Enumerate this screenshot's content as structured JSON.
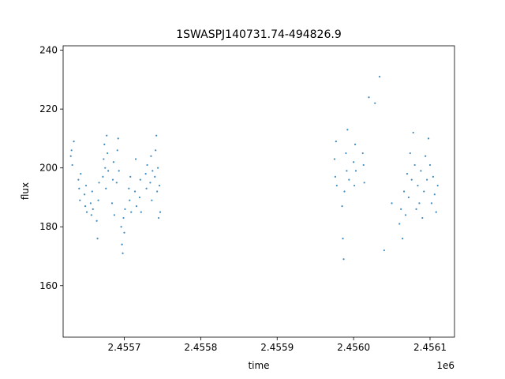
{
  "chart_data": {
    "type": "scatter",
    "title": "1SWASPJ140731.74-494826.9",
    "xlabel": "time",
    "ylabel": "flux",
    "x_offset_label": "1e6",
    "xlim": [
      2455620,
      2456132
    ],
    "ylim": [
      142.5,
      241.5
    ],
    "x_ticks": [
      2.4557,
      2.4558,
      2.4559,
      2.456,
      2.4561
    ],
    "x_tick_labels": [
      "2.4557",
      "2.4558",
      "2.4559",
      "2.4560",
      "2.4561"
    ],
    "y_ticks": [
      160,
      180,
      200,
      220,
      240
    ],
    "y_tick_labels": [
      "160",
      "180",
      "200",
      "220",
      "240"
    ],
    "grid": false,
    "marker_color": "#1f77b4",
    "series": [
      {
        "values_xy": [
          [
            2455630,
            204
          ],
          [
            2455631,
            206
          ],
          [
            2455632,
            201
          ],
          [
            2455634,
            209
          ],
          [
            2455640,
            196
          ],
          [
            2455641,
            193
          ],
          [
            2455642,
            189
          ],
          [
            2455643,
            198
          ],
          [
            2455648,
            191
          ],
          [
            2455649,
            187
          ],
          [
            2455650,
            194
          ],
          [
            2455651,
            185
          ],
          [
            2455656,
            188
          ],
          [
            2455657,
            184
          ],
          [
            2455658,
            192
          ],
          [
            2455659,
            186
          ],
          [
            2455664,
            182
          ],
          [
            2455665,
            176
          ],
          [
            2455666,
            189
          ],
          [
            2455667,
            195
          ],
          [
            2455672,
            197
          ],
          [
            2455673,
            203
          ],
          [
            2455674,
            208
          ],
          [
            2455675,
            200
          ],
          [
            2455676,
            193
          ],
          [
            2455677,
            211
          ],
          [
            2455678,
            205
          ],
          [
            2455679,
            199
          ],
          [
            2455684,
            188
          ],
          [
            2455685,
            196
          ],
          [
            2455686,
            202
          ],
          [
            2455687,
            184
          ],
          [
            2455690,
            195
          ],
          [
            2455691,
            206
          ],
          [
            2455692,
            210
          ],
          [
            2455693,
            199
          ],
          [
            2455696,
            180
          ],
          [
            2455697,
            174
          ],
          [
            2455698,
            171
          ],
          [
            2455699,
            183
          ],
          [
            2455700,
            178
          ],
          [
            2455701,
            186
          ],
          [
            2455706,
            193
          ],
          [
            2455707,
            189
          ],
          [
            2455708,
            197
          ],
          [
            2455709,
            185
          ],
          [
            2455714,
            192
          ],
          [
            2455715,
            203
          ],
          [
            2455716,
            187
          ],
          [
            2455720,
            190
          ],
          [
            2455721,
            196
          ],
          [
            2455722,
            185
          ],
          [
            2455728,
            198
          ],
          [
            2455729,
            193
          ],
          [
            2455730,
            201
          ],
          [
            2455734,
            195
          ],
          [
            2455735,
            204
          ],
          [
            2455736,
            189
          ],
          [
            2455737,
            199
          ],
          [
            2455740,
            197
          ],
          [
            2455741,
            206
          ],
          [
            2455742,
            211
          ],
          [
            2455743,
            192
          ],
          [
            2455744,
            200
          ],
          [
            2455745,
            183
          ],
          [
            2455746,
            194
          ],
          [
            2455747,
            185
          ],
          [
            2455975,
            203
          ],
          [
            2455976,
            197
          ],
          [
            2455977,
            209
          ],
          [
            2455978,
            194
          ],
          [
            2455985,
            187
          ],
          [
            2455986,
            176
          ],
          [
            2455987,
            169
          ],
          [
            2455988,
            192
          ],
          [
            2455990,
            205
          ],
          [
            2455991,
            199
          ],
          [
            2455992,
            213
          ],
          [
            2455994,
            196
          ],
          [
            2456000,
            202
          ],
          [
            2456001,
            194
          ],
          [
            2456002,
            208
          ],
          [
            2456003,
            199
          ],
          [
            2456012,
            205
          ],
          [
            2456013,
            201
          ],
          [
            2456014,
            195
          ],
          [
            2456020,
            224
          ],
          [
            2456028,
            222
          ],
          [
            2456034,
            231
          ],
          [
            2456040,
            172
          ],
          [
            2456050,
            188
          ],
          [
            2456060,
            181
          ],
          [
            2456062,
            186
          ],
          [
            2456064,
            176
          ],
          [
            2456066,
            192
          ],
          [
            2456068,
            184
          ],
          [
            2456070,
            198
          ],
          [
            2456072,
            190
          ],
          [
            2456074,
            205
          ],
          [
            2456076,
            196
          ],
          [
            2456078,
            212
          ],
          [
            2456080,
            201
          ],
          [
            2456082,
            186
          ],
          [
            2456084,
            194
          ],
          [
            2456086,
            188
          ],
          [
            2456088,
            199
          ],
          [
            2456090,
            183
          ],
          [
            2456092,
            192
          ],
          [
            2456094,
            204
          ],
          [
            2456096,
            196
          ],
          [
            2456098,
            210
          ],
          [
            2456100,
            201
          ],
          [
            2456102,
            188
          ],
          [
            2456104,
            197
          ],
          [
            2456106,
            191
          ],
          [
            2456108,
            185
          ],
          [
            2456110,
            194
          ]
        ]
      }
    ]
  }
}
